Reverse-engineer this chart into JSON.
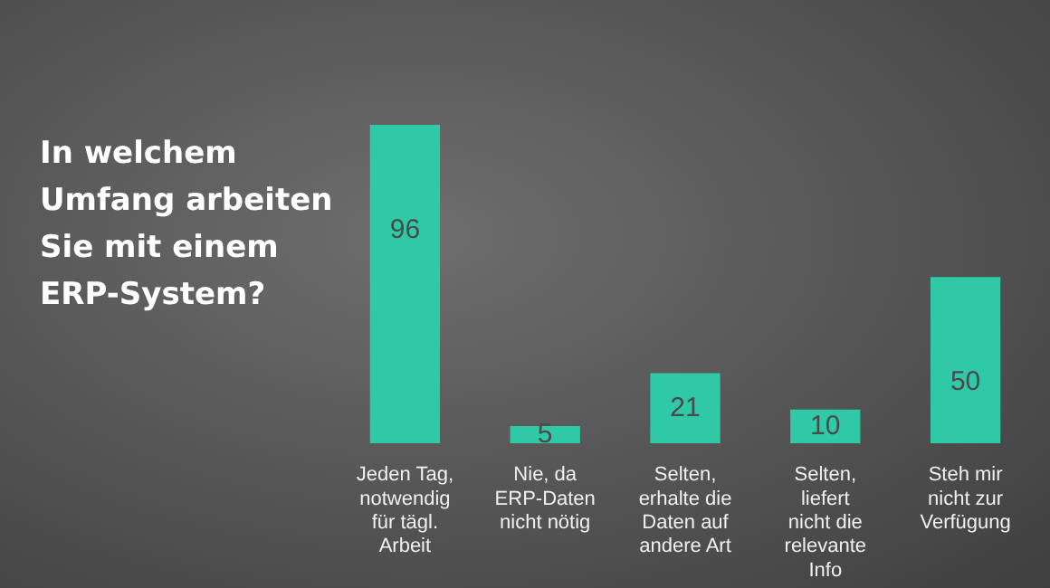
{
  "chart_data": {
    "type": "bar",
    "title": "In welchem Umfang arbeiten Sie mit einem ERP-System?",
    "categories": [
      "Jeden Tag, notwendig für tägl. Arbeit",
      "Nie, da ERP-Daten nicht nötig",
      "Selten, erhalte die Daten auf andere Art",
      "Selten, liefert nicht die relevante Info",
      "Steh mir nicht zur Verfügung"
    ],
    "values": [
      96,
      5,
      21,
      10,
      50
    ],
    "color": "#2fc9a8",
    "data_labels": true,
    "grid": false,
    "legend": false
  }
}
